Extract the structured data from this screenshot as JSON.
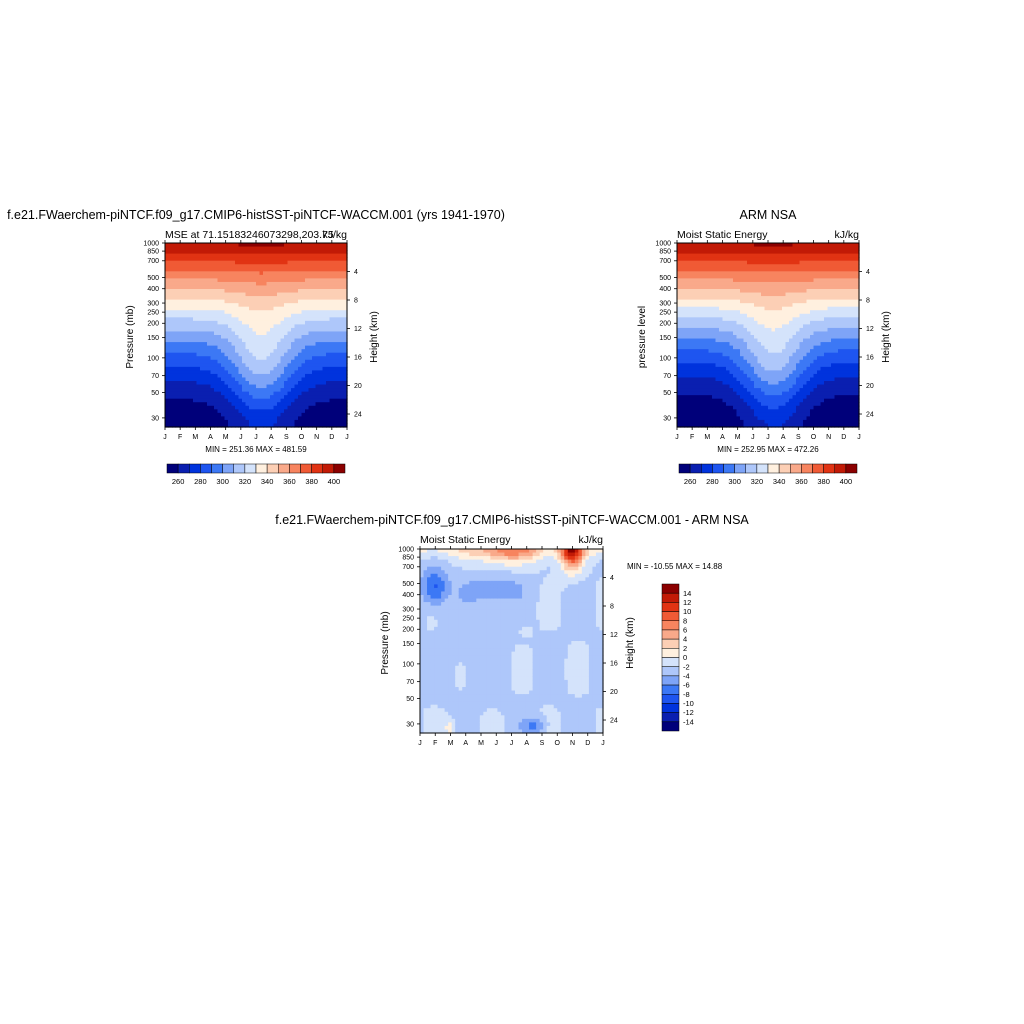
{
  "colors": {
    "palette": [
      "#00007a",
      "#0a1fb0",
      "#0033dd",
      "#1e55f0",
      "#3c78f5",
      "#7ea4f7",
      "#aec7fa",
      "#d4e3fb",
      "#fff0df",
      "#fccfb5",
      "#f9a98a",
      "#f7845f",
      "#f05a35",
      "#e13313",
      "#c21a06",
      "#8b0000"
    ]
  },
  "panels": [
    {
      "title": "f.e21.FWaerchem-piNTCF.f09_g17.CMIP6-histSST-piNTCF-WACCM.001 (yrs 1941-1970)",
      "subtitle_left": "MSE at 71.15183246073298,203.75",
      "subtitle_right": "kJ/kg",
      "ylabel_left": "Pressure (mb)",
      "ylabel_right": "Height (km)",
      "stats": "MIN = 251.36 MAX = 481.59"
    },
    {
      "title": "ARM NSA",
      "subtitle_left": "Moist Static Energy",
      "subtitle_right": "kJ/kg",
      "ylabel_left": "pressure level",
      "ylabel_right": "Height (km)",
      "stats": "MIN = 252.95 MAX = 472.26"
    },
    {
      "title": "f.e21.FWaerchem-piNTCF.f09_g17.CMIP6-histSST-piNTCF-WACCM.001 - ARM NSA",
      "subtitle_left": "Moist Static Energy",
      "subtitle_right": "kJ/kg",
      "ylabel_left": "Pressure (mb)",
      "ylabel_right": "Height (km)",
      "stats": "MIN = -10.55 MAX =  14.88"
    }
  ],
  "chart_data": [
    {
      "type": "heatmap",
      "panel": "model",
      "x_tick_labels": [
        "J",
        "F",
        "M",
        "A",
        "M",
        "J",
        "J",
        "A",
        "S",
        "O",
        "N",
        "D",
        "J"
      ],
      "pressure_ticks": [
        "30",
        "50",
        "70",
        "100",
        "150",
        "200",
        "250",
        "300",
        "400",
        "500",
        "700",
        "850",
        "1000"
      ],
      "height_ticks_km": [
        "4",
        "8",
        "12",
        "16",
        "20",
        "24"
      ],
      "contour_levels": [
        260,
        270,
        280,
        290,
        300,
        310,
        320,
        330,
        340,
        350,
        360,
        370,
        380,
        390,
        400
      ],
      "colorbar_labels": [
        "260",
        "280",
        "300",
        "320",
        "340",
        "360",
        "380",
        "400"
      ],
      "min": 251.36,
      "max": 481.59
    },
    {
      "type": "heatmap",
      "panel": "obs",
      "x_tick_labels": [
        "J",
        "F",
        "M",
        "A",
        "M",
        "J",
        "J",
        "A",
        "S",
        "O",
        "N",
        "D",
        "J"
      ],
      "pressure_ticks": [
        "30",
        "50",
        "70",
        "100",
        "150",
        "200",
        "250",
        "300",
        "400",
        "500",
        "700",
        "850",
        "1000"
      ],
      "height_ticks_km": [
        "4",
        "8",
        "12",
        "16",
        "20",
        "24"
      ],
      "contour_levels": [
        260,
        270,
        280,
        290,
        300,
        310,
        320,
        330,
        340,
        350,
        360,
        370,
        380,
        390,
        400
      ],
      "colorbar_labels": [
        "260",
        "280",
        "300",
        "320",
        "340",
        "360",
        "380",
        "400"
      ],
      "min": 252.95,
      "max": 472.26
    },
    {
      "type": "heatmap",
      "panel": "difference",
      "x_tick_labels": [
        "J",
        "F",
        "M",
        "A",
        "M",
        "J",
        "J",
        "A",
        "S",
        "O",
        "N",
        "D",
        "J"
      ],
      "pressure_ticks": [
        "30",
        "50",
        "70",
        "100",
        "150",
        "200",
        "250",
        "300",
        "400",
        "500",
        "700",
        "850",
        "1000"
      ],
      "height_ticks_km": [
        "4",
        "8",
        "12",
        "16",
        "20",
        "24"
      ],
      "contour_levels": [
        -14,
        -12,
        -10,
        -8,
        -6,
        -4,
        -2,
        0,
        2,
        4,
        6,
        8,
        10,
        12,
        14
      ],
      "colorbar_labels": [
        "14",
        "12",
        "10",
        "8",
        "6",
        "4",
        "2",
        "0",
        "-2",
        "-4",
        "-6",
        "-8",
        "-10",
        "-12",
        "-14"
      ],
      "min": -10.55,
      "max": 14.88
    }
  ]
}
